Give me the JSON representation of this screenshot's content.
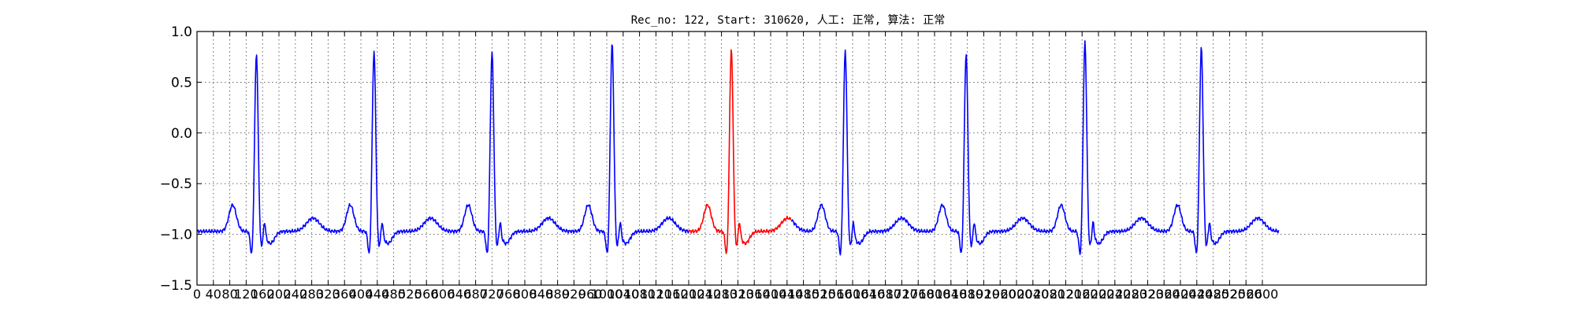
{
  "chart_data": {
    "type": "line",
    "title": "Rec_no: 122, Start: 310620, 人工: 正常, 算法: 正常",
    "xlabel": "",
    "ylabel": "",
    "xlim": [
      0,
      3000
    ],
    "ylim": [
      -1.5,
      1.0
    ],
    "y_ticks": [
      "1.0",
      "0.5",
      "0.0",
      "−0.5",
      "−1.0",
      "−1.5"
    ],
    "y_tick_values": [
      1.0,
      0.5,
      0.0,
      -0.5,
      -1.0,
      -1.5
    ],
    "x_tick_step": 40,
    "x_tick_labels": [
      "0",
      "40",
      "80",
      "120",
      "160",
      "200",
      "240",
      "280",
      "320",
      "360",
      "400",
      "440",
      "480",
      "520",
      "560",
      "600",
      "640",
      "680",
      "720",
      "760",
      "800",
      "840",
      "880",
      "920",
      "960",
      "1000",
      "1040",
      "1080",
      "1120",
      "1160",
      "1200",
      "1240",
      "1280",
      "1320",
      "1360",
      "1400",
      "1440",
      "1480",
      "1520",
      "1560",
      "1600",
      "1640",
      "1680",
      "1720",
      "1760",
      "1800",
      "1840",
      "1880",
      "1920",
      "1960",
      "2000",
      "2040",
      "2080",
      "2120",
      "2160",
      "2200",
      "2240",
      "2280",
      "2320",
      "2360",
      "2400",
      "2440",
      "2480",
      "2520",
      "2560",
      "2600"
    ],
    "grid": true,
    "colors": {
      "normal": "#0000ff",
      "highlight": "#ff0000"
    },
    "x_end": 2640,
    "baseline": -0.97,
    "beats": [
      {
        "r_x": 145,
        "r_amp": 0.79,
        "segment": "normal"
      },
      {
        "r_x": 432,
        "r_amp": 0.81,
        "segment": "normal"
      },
      {
        "r_x": 720,
        "r_amp": 0.8,
        "segment": "normal"
      },
      {
        "r_x": 1013,
        "r_amp": 0.89,
        "segment": "normal"
      },
      {
        "r_x": 1304,
        "r_amp": 0.84,
        "segment": "highlight"
      },
      {
        "r_x": 1582,
        "r_amp": 0.82,
        "segment": "normal"
      },
      {
        "r_x": 1877,
        "r_amp": 0.79,
        "segment": "normal"
      },
      {
        "r_x": 2167,
        "r_amp": 0.9,
        "segment": "normal"
      },
      {
        "r_x": 2451,
        "r_amp": 0.85,
        "segment": "normal"
      }
    ],
    "highlight_range": [
      1200,
      1450
    ]
  }
}
